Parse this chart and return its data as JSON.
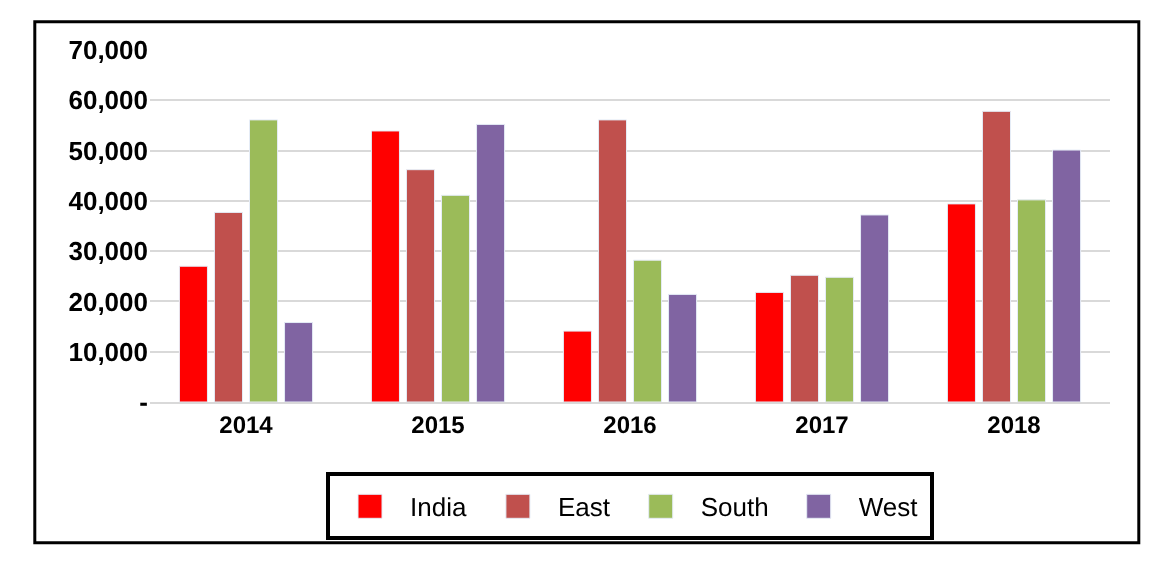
{
  "chart_data": {
    "type": "bar",
    "categories": [
      "2014",
      "2015",
      "2016",
      "2017",
      "2018"
    ],
    "series": [
      {
        "name": "India",
        "color": "#ff0000",
        "values": [
          27000,
          53900,
          14100,
          21800,
          39400
        ]
      },
      {
        "name": "East",
        "color": "#c0504d",
        "values": [
          37700,
          46200,
          56100,
          25200,
          57800
        ]
      },
      {
        "name": "South",
        "color": "#9bbb59",
        "values": [
          56100,
          41100,
          28200,
          24800,
          40200
        ]
      },
      {
        "name": "West",
        "color": "#8064a2",
        "values": [
          15800,
          55200,
          21400,
          37200,
          50100
        ]
      }
    ],
    "ylim": [
      0,
      70000
    ],
    "yticks": [
      {
        "value": 0,
        "label": "-"
      },
      {
        "value": 10000,
        "label": "10,000"
      },
      {
        "value": 20000,
        "label": "20,000"
      },
      {
        "value": 30000,
        "label": "30,000"
      },
      {
        "value": 40000,
        "label": "40,000"
      },
      {
        "value": 50000,
        "label": "50,000"
      },
      {
        "value": 60000,
        "label": "60,000"
      },
      {
        "value": 70000,
        "label": "70,000"
      }
    ],
    "grid": "y",
    "legend": "bottom"
  }
}
